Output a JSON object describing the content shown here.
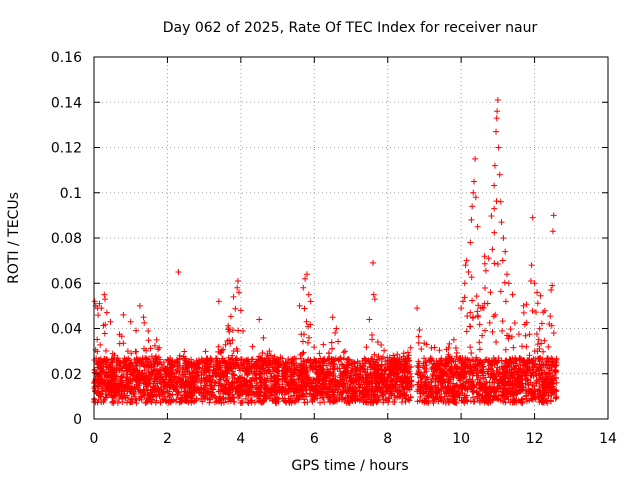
{
  "chart_data": {
    "type": "scatter",
    "title": "Day 062 of 2025, Rate Of TEC Index for receiver naur",
    "xlabel": "GPS time / hours",
    "ylabel": "ROTI / TECUs",
    "xlim": [
      0,
      14
    ],
    "ylim": [
      0,
      0.16
    ],
    "xticks": [
      0,
      2,
      4,
      6,
      8,
      10,
      12,
      14
    ],
    "yticks": [
      0,
      0.02,
      0.04,
      0.06,
      0.08,
      0.1,
      0.12,
      0.14,
      0.16
    ],
    "xtick_labels": [
      "0",
      "2",
      "4",
      "6",
      "8",
      "10",
      "12",
      "14"
    ],
    "ytick_labels": [
      "0",
      "0.02",
      "0.04",
      "0.06",
      "0.08",
      "0.1",
      "0.12",
      "0.14",
      "0.16"
    ],
    "grid": true,
    "marker": "+",
    "color": "#ff0000",
    "data_x_range": [
      0,
      12.6
    ],
    "gaps": [
      [
        8.65,
        8.8
      ]
    ],
    "series": [
      {
        "name": "ROTI",
        "envelope": [
          [
            0.0,
            0.048
          ],
          [
            0.25,
            0.045
          ],
          [
            0.5,
            0.03
          ],
          [
            0.75,
            0.04
          ],
          [
            1.0,
            0.032
          ],
          [
            1.25,
            0.045
          ],
          [
            1.5,
            0.04
          ],
          [
            2.0,
            0.028
          ],
          [
            2.5,
            0.03
          ],
          [
            3.0,
            0.03
          ],
          [
            3.5,
            0.034
          ],
          [
            3.9,
            0.055
          ],
          [
            4.2,
            0.03
          ],
          [
            4.5,
            0.04
          ],
          [
            5.0,
            0.028
          ],
          [
            5.5,
            0.028
          ],
          [
            5.8,
            0.055
          ],
          [
            6.1,
            0.03
          ],
          [
            6.5,
            0.04
          ],
          [
            7.0,
            0.026
          ],
          [
            7.5,
            0.04
          ],
          [
            8.0,
            0.03
          ],
          [
            8.5,
            0.03
          ],
          [
            8.8,
            0.045
          ],
          [
            9.5,
            0.03
          ],
          [
            10.0,
            0.04
          ],
          [
            10.2,
            0.09
          ],
          [
            10.5,
            0.045
          ],
          [
            10.9,
            0.13
          ],
          [
            11.2,
            0.06
          ],
          [
            11.5,
            0.04
          ],
          [
            12.0,
            0.06
          ],
          [
            12.5,
            0.045
          ],
          [
            12.6,
            0.03
          ]
        ],
        "points": [
          [
            0.02,
            0.052
          ],
          [
            0.05,
            0.05
          ],
          [
            0.1,
            0.049
          ],
          [
            0.15,
            0.051
          ],
          [
            0.2,
            0.049
          ],
          [
            0.28,
            0.055
          ],
          [
            0.3,
            0.053
          ],
          [
            0.35,
            0.047
          ],
          [
            0.45,
            0.043
          ],
          [
            0.8,
            0.046
          ],
          [
            1.0,
            0.043
          ],
          [
            1.25,
            0.05
          ],
          [
            1.35,
            0.045
          ],
          [
            2.3,
            0.065
          ],
          [
            3.4,
            0.052
          ],
          [
            3.8,
            0.054
          ],
          [
            3.9,
            0.058
          ],
          [
            3.92,
            0.061
          ],
          [
            3.95,
            0.056
          ],
          [
            4.0,
            0.048
          ],
          [
            4.5,
            0.044
          ],
          [
            5.6,
            0.05
          ],
          [
            5.7,
            0.058
          ],
          [
            5.75,
            0.062
          ],
          [
            5.8,
            0.064
          ],
          [
            5.85,
            0.055
          ],
          [
            5.9,
            0.052
          ],
          [
            6.5,
            0.045
          ],
          [
            6.6,
            0.04
          ],
          [
            7.6,
            0.069
          ],
          [
            7.62,
            0.055
          ],
          [
            7.65,
            0.053
          ],
          [
            7.5,
            0.044
          ],
          [
            8.8,
            0.049
          ],
          [
            10.0,
            0.049
          ],
          [
            10.05,
            0.052
          ],
          [
            10.1,
            0.06
          ],
          [
            10.12,
            0.068
          ],
          [
            10.15,
            0.07
          ],
          [
            10.2,
            0.065
          ],
          [
            10.25,
            0.078
          ],
          [
            10.28,
            0.088
          ],
          [
            10.3,
            0.094
          ],
          [
            10.33,
            0.1
          ],
          [
            10.35,
            0.105
          ],
          [
            10.38,
            0.115
          ],
          [
            10.4,
            0.098
          ],
          [
            10.45,
            0.085
          ],
          [
            10.8,
            0.056
          ],
          [
            10.85,
            0.075
          ],
          [
            10.9,
            0.093
          ],
          [
            10.92,
            0.112
          ],
          [
            10.95,
            0.127
          ],
          [
            10.97,
            0.133
          ],
          [
            10.98,
            0.136
          ],
          [
            11.0,
            0.141
          ],
          [
            11.02,
            0.12
          ],
          [
            11.05,
            0.108
          ],
          [
            11.08,
            0.096
          ],
          [
            11.1,
            0.087
          ],
          [
            11.15,
            0.08
          ],
          [
            11.2,
            0.074
          ],
          [
            11.25,
            0.064
          ],
          [
            11.3,
            0.06
          ],
          [
            11.4,
            0.055
          ],
          [
            11.7,
            0.05
          ],
          [
            11.9,
            0.061
          ],
          [
            11.92,
            0.068
          ],
          [
            11.95,
            0.089
          ],
          [
            12.0,
            0.06
          ],
          [
            12.4,
            0.042
          ],
          [
            12.45,
            0.057
          ],
          [
            12.48,
            0.059
          ],
          [
            12.5,
            0.083
          ],
          [
            12.52,
            0.09
          ]
        ]
      }
    ]
  }
}
